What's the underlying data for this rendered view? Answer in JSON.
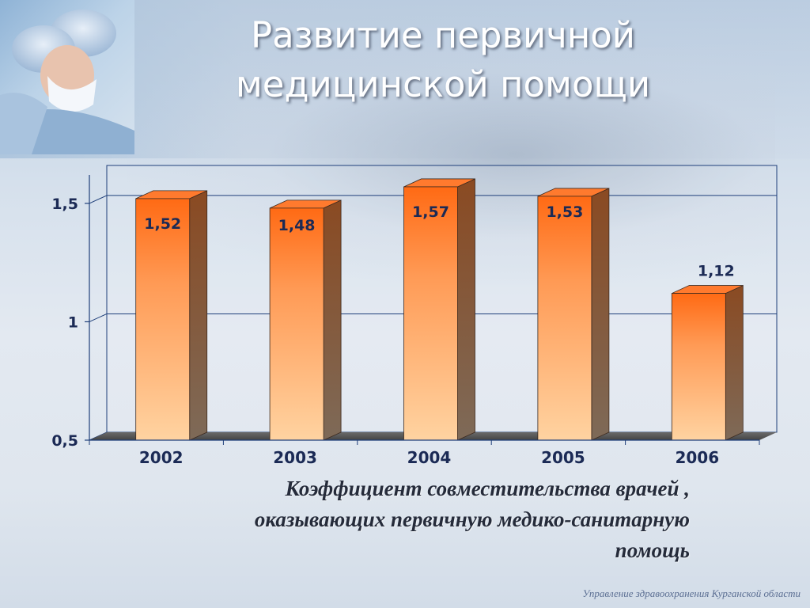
{
  "slide": {
    "title_line1": "Развитие первичной",
    "title_line2": "медицинской помощи",
    "caption_line1": "Коэффициент совместительства врачей ,",
    "caption_line2": "оказывающих первичную медико-санитарную",
    "caption_line3": "помощь",
    "footer": "Управление здравоохранения  Курганской области"
  },
  "chart_data": {
    "type": "bar",
    "categories": [
      "2002",
      "2003",
      "2004",
      "2005",
      "2006"
    ],
    "values": [
      1.52,
      1.48,
      1.57,
      1.53,
      1.12
    ],
    "value_labels": [
      "1,52",
      "1,48",
      "1,57",
      "1,53",
      "1,12"
    ],
    "yticks": [
      0.5,
      1,
      1.5
    ],
    "ytick_labels": [
      "0,5",
      "1",
      "1,5"
    ],
    "ylim": [
      0.5,
      1.62
    ],
    "grid": true,
    "style": "3d-column",
    "colors": {
      "bar_top": "#ff6a14",
      "bar_bottom": "#ffd3a1",
      "bar_side": "#7e5a44",
      "axis": "#1f3f7a",
      "label": "#1b2a55"
    }
  }
}
